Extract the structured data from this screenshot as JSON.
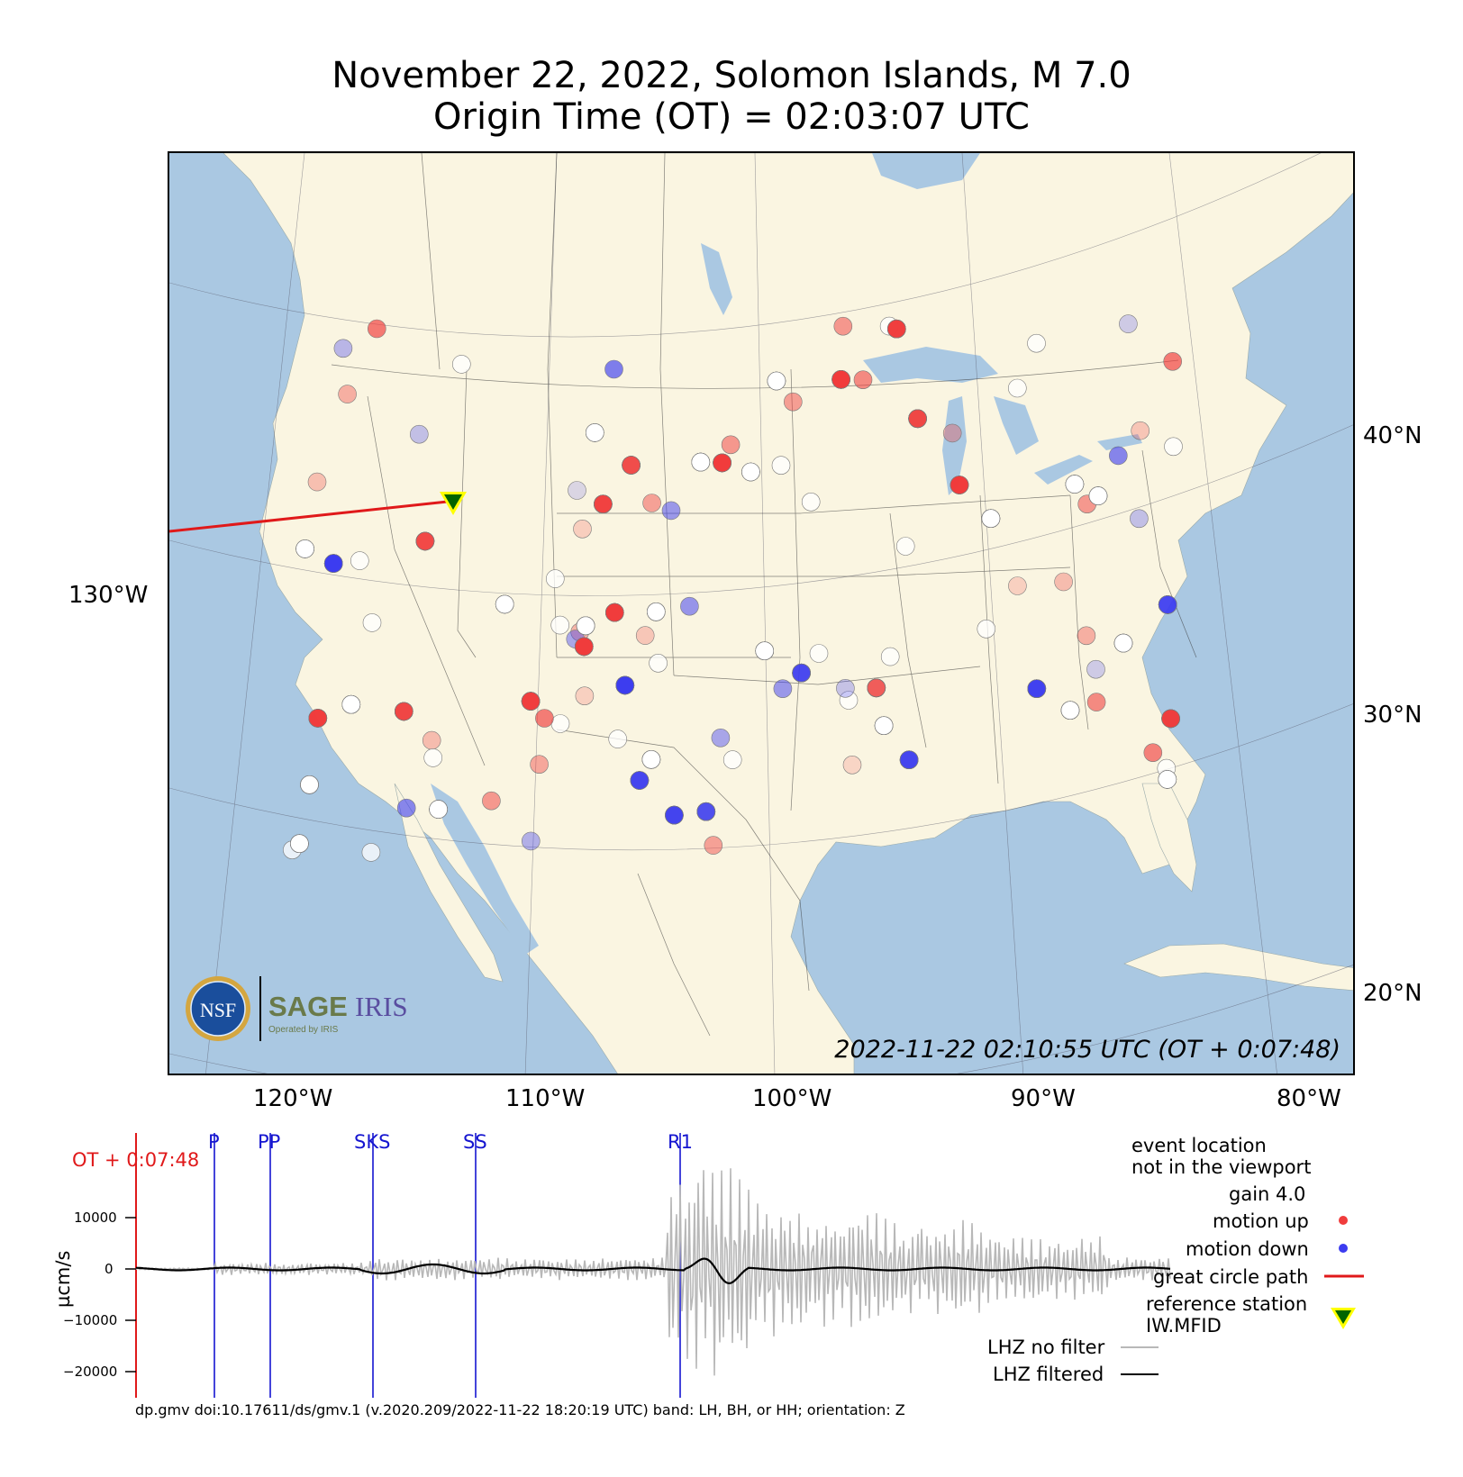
{
  "title": {
    "line1": "November 22, 2022, Solomon Islands, M 7.0",
    "line2": "Origin Time (OT) = 02:03:07 UTC"
  },
  "map": {
    "timestamp": "2022-11-22 02:10:55 UTC (OT + 0:07:48)",
    "longitude_labels": [
      "120°W",
      "110°W",
      "100°W",
      "90°W",
      "80°W"
    ],
    "latitude_labels": [
      "40°N",
      "30°N",
      "20°N"
    ],
    "left_label": "130°W",
    "colors": {
      "land": "#faf5e1",
      "water": "#aac8e2",
      "motion_up": "#f03c3c",
      "motion_down": "#3c3cf0",
      "great_circle": "#e0191a",
      "station_fill": "#006400",
      "station_edge": "#ffff00"
    },
    "reference_station": "IW.MFID",
    "logo": {
      "nsf": "NSF",
      "sage": "SAGE",
      "iris": "IRIS",
      "operated": "Operated by IRIS"
    }
  },
  "seismogram": {
    "ot_label": "OT + 0:07:48",
    "ylabel": "µcm/s",
    "yticks": [
      "10000",
      "0",
      "−10000",
      "−20000"
    ],
    "phases": [
      "P",
      "PP",
      "SKS",
      "SS",
      "R1"
    ],
    "footer": "dp.gmv doi:10.17611/ds/gmv.1 (v.2020.209/2022-11-22 18:20:19 UTC) band: LH, BH, or HH; orientation: Z"
  },
  "legend": {
    "event_line1": "event location",
    "event_line2": "not in the viewport",
    "gain": "gain  4.0",
    "motion_up": "motion up",
    "motion_down": "motion down",
    "great_circle": "great circle path",
    "reference_line1": "reference station",
    "reference_line2": "IW.MFID",
    "no_filter": "LHZ no filter",
    "filtered": "LHZ filtered"
  }
}
